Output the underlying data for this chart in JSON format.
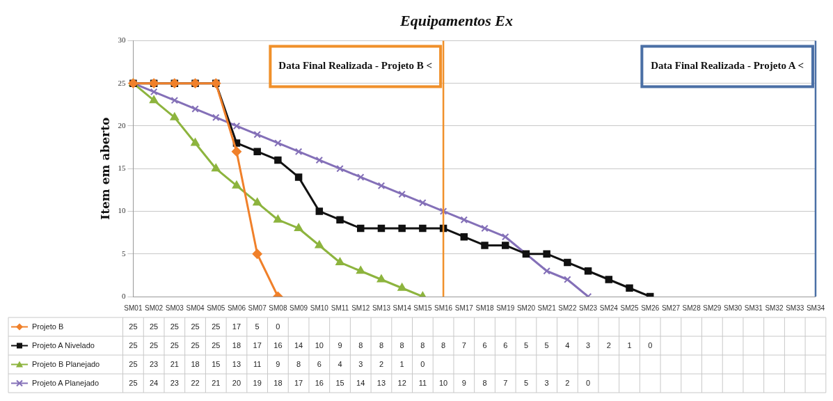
{
  "chart_data": {
    "type": "line",
    "title": "Equipamentos Ex",
    "ylabel": "Item em aberto",
    "categories": [
      "SM01",
      "SM02",
      "SM03",
      "SM04",
      "SM05",
      "SM06",
      "SM07",
      "SM08",
      "SM09",
      "SM10",
      "SM11",
      "SM12",
      "SM13",
      "SM14",
      "SM15",
      "SM16",
      "SM17",
      "SM18",
      "SM19",
      "SM20",
      "SM21",
      "SM22",
      "SM23",
      "SM24",
      "SM25",
      "SM26",
      "SM27",
      "SM28",
      "SM29",
      "SM30",
      "SM31",
      "SM32",
      "SM33",
      "SM34"
    ],
    "series": [
      {
        "name": "Projeto B",
        "color": "#f0802a",
        "marker": "diamond",
        "values": [
          25,
          25,
          25,
          25,
          25,
          17,
          5,
          0,
          null,
          null,
          null,
          null,
          null,
          null,
          null,
          null,
          null,
          null,
          null,
          null,
          null,
          null,
          null,
          null,
          null,
          null,
          null,
          null,
          null,
          null,
          null,
          null,
          null,
          null
        ]
      },
      {
        "name": "Projeto A Nivelado",
        "color": "#111111",
        "marker": "square",
        "values": [
          25,
          25,
          25,
          25,
          25,
          18,
          17,
          16,
          14,
          10,
          9,
          8,
          8,
          8,
          8,
          8,
          7,
          6,
          6,
          5,
          5,
          4,
          3,
          2,
          1,
          0,
          null,
          null,
          null,
          null,
          null,
          null,
          null,
          null
        ]
      },
      {
        "name": "Projeto B Planejado",
        "color": "#8db43e",
        "marker": "triangle",
        "values": [
          25,
          23,
          21,
          18,
          15,
          13,
          11,
          9,
          8,
          6,
          4,
          3,
          2,
          1,
          0,
          null,
          null,
          null,
          null,
          null,
          null,
          null,
          null,
          null,
          null,
          null,
          null,
          null,
          null,
          null,
          null,
          null,
          null,
          null
        ]
      },
      {
        "name": "Projeto A Planejado",
        "color": "#8470b8",
        "marker": "cross",
        "values": [
          25,
          24,
          23,
          22,
          21,
          20,
          19,
          18,
          17,
          16,
          15,
          14,
          13,
          12,
          11,
          10,
          9,
          8,
          7,
          5,
          3,
          2,
          0,
          null,
          null,
          null,
          null,
          null,
          null,
          null,
          null,
          null,
          null,
          null
        ]
      }
    ],
    "ylim": [
      0,
      30
    ],
    "yticks": [
      0,
      5,
      10,
      15,
      20,
      25,
      30
    ],
    "grid": "y",
    "legend": "bottom",
    "data_labels": true,
    "ref_lines": [
      {
        "axis": "x",
        "value": "SM16",
        "label": "Data Final Realizada - Projeto B <",
        "color": "#f0902a"
      },
      {
        "axis": "x",
        "value": "SM34",
        "label": "Data Final Realizada - Projeto A <",
        "color": "#4a6fa5"
      }
    ]
  }
}
